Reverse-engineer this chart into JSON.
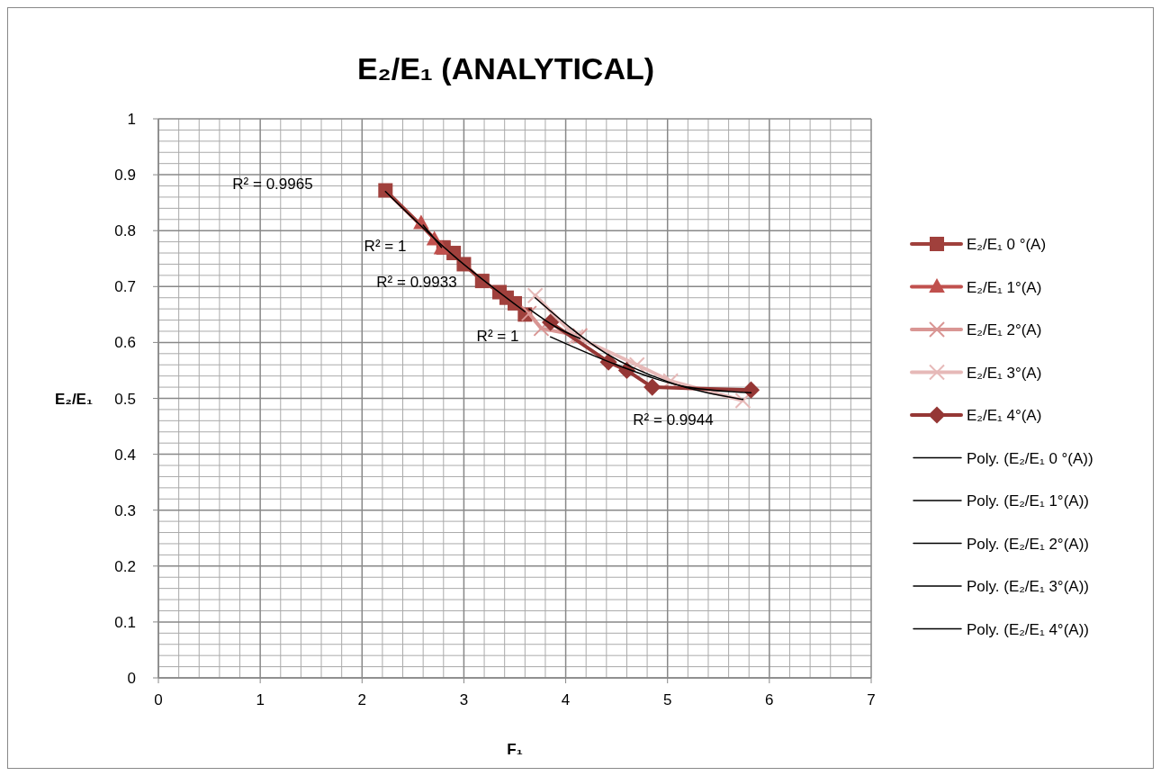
{
  "chart_data": {
    "type": "line",
    "title": "E₂/E₁ (ANALYTICAL)",
    "xlabel": "F₁",
    "ylabel": "E₂/E₁",
    "xlim": [
      0,
      7
    ],
    "xticks": [
      0,
      1,
      2,
      3,
      4,
      5,
      6,
      7
    ],
    "ylim": [
      0,
      1
    ],
    "yticks": [
      0,
      0.1,
      0.2,
      0.3,
      0.4,
      0.5,
      0.6,
      0.7,
      0.8,
      0.9,
      1
    ],
    "grid": true,
    "legend": "right",
    "series": [
      {
        "name": "E₂/E₁ 0 °(A)",
        "color": "#a0403c",
        "marker": "square",
        "x": [
          2.23,
          2.8,
          2.9,
          3.0,
          3.18,
          3.35,
          3.42,
          3.5,
          3.6
        ],
        "values": [
          0.872,
          0.77,
          0.76,
          0.74,
          0.71,
          0.69,
          0.68,
          0.67,
          0.65
        ]
      },
      {
        "name": "E₂/E₁ 1°(A)",
        "color": "#c0504d",
        "marker": "triangle",
        "x": [
          2.58,
          2.71,
          2.78
        ],
        "values": [
          0.813,
          0.784,
          0.768
        ]
      },
      {
        "name": "E₂/E₁ 2°(A)",
        "color": "#d99694",
        "marker": "cross",
        "x": [
          3.64,
          3.76,
          4.14
        ],
        "values": [
          0.652,
          0.625,
          0.612
        ]
      },
      {
        "name": "E₂/E₁ 3°(A)",
        "color": "#e6b9b8",
        "marker": "cross",
        "x": [
          3.7,
          4.1,
          4.7,
          5.03,
          5.74
        ],
        "values": [
          0.684,
          0.61,
          0.56,
          0.531,
          0.496
        ]
      },
      {
        "name": "E₂/E₁ 4°(A)",
        "color": "#953735",
        "marker": "diamond",
        "x": [
          3.85,
          4.42,
          4.6,
          4.85,
          5.82
        ],
        "values": [
          0.636,
          0.565,
          0.55,
          0.52,
          0.515
        ]
      },
      {
        "name": "Poly. (E₂/E₁ 0 °(A))",
        "color": "#000000",
        "marker": "none",
        "x": [
          2.23,
          2.9,
          3.6
        ],
        "values": [
          0.87,
          0.755,
          0.655
        ]
      },
      {
        "name": "Poly. (E₂/E₁ 1°(A))",
        "color": "#000000",
        "marker": "none",
        "x": [
          2.6,
          2.78
        ],
        "values": [
          0.81,
          0.77
        ]
      },
      {
        "name": "Poly. (E₂/E₁ 2°(A))",
        "color": "#000000",
        "marker": "none",
        "x": [
          3.64,
          3.9,
          4.14
        ],
        "values": [
          0.66,
          0.628,
          0.607
        ]
      },
      {
        "name": "Poly. (E₂/E₁ 3°(A))",
        "color": "#000000",
        "marker": "none",
        "x": [
          3.7,
          4.4,
          5.0,
          5.74
        ],
        "values": [
          0.68,
          0.58,
          0.53,
          0.498
        ]
      },
      {
        "name": "Poly. (E₂/E₁ 4°(A))",
        "color": "#000000",
        "marker": "none",
        "x": [
          3.85,
          4.5,
          5.2,
          5.82
        ],
        "values": [
          0.61,
          0.56,
          0.52,
          0.51
        ]
      }
    ],
    "annotations": [
      "R² = 0.9965",
      "R² = 1",
      "R² = 0.9933",
      "R² = 1",
      "R² = 0.9944"
    ]
  }
}
